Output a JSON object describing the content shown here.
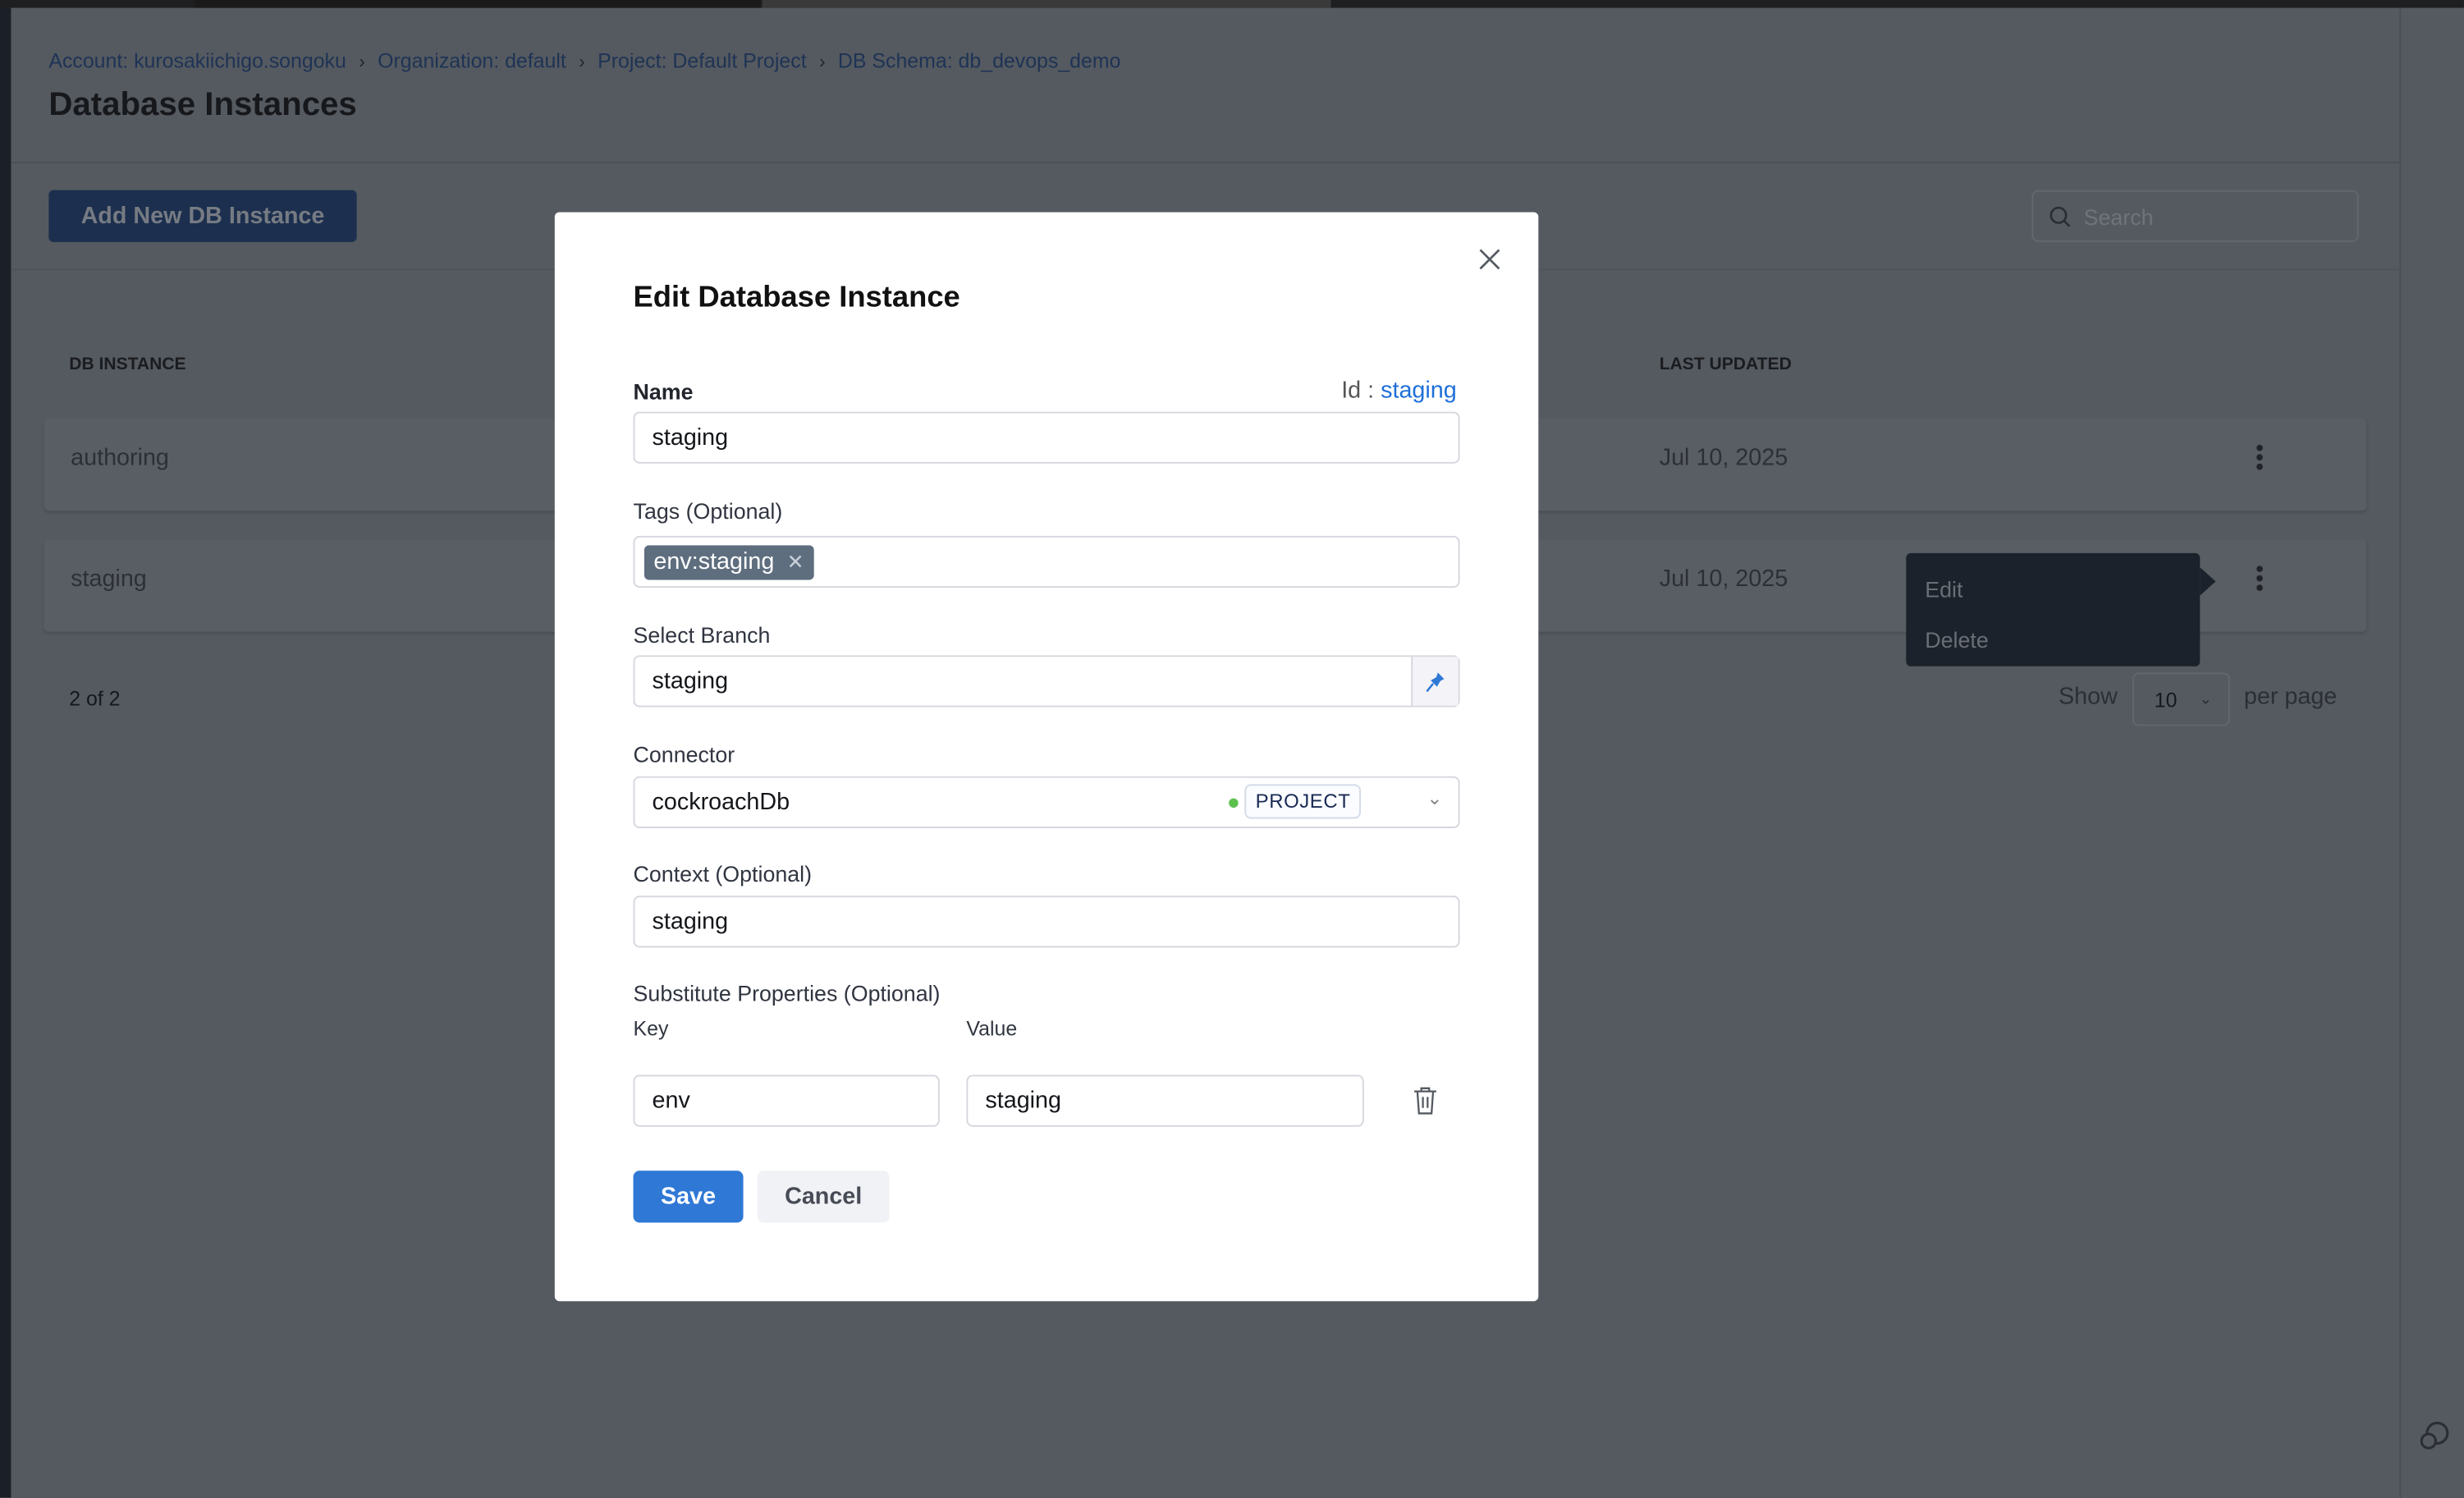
{
  "breadcrumbs": [
    "Account: kurosakiichigo.songoku",
    "Organization: default",
    "Project: Default Project",
    "DB Schema: db_devops_demo"
  ],
  "page_title": "Database Instances",
  "toolbar": {
    "add_label": "Add New DB Instance",
    "search_placeholder": "Search"
  },
  "table": {
    "columns": [
      "DB INSTANCE",
      "LAST UPDATED"
    ],
    "rows": [
      {
        "name": "authoring",
        "updated": "Jul 10, 2025"
      },
      {
        "name": "staging",
        "updated": "Jul 10, 2025"
      }
    ]
  },
  "row_menu": {
    "items": [
      "Edit",
      "Delete"
    ]
  },
  "pagination": {
    "count": "2 of 2",
    "show": "Show",
    "page_size": "10",
    "per_page": "per page"
  },
  "modal": {
    "title": "Edit Database Instance",
    "name_label": "Name",
    "id_label": "Id :",
    "id_value": "staging",
    "name_value": "staging",
    "tags_label": "Tags (Optional)",
    "tags": [
      "env:staging"
    ],
    "branch_label": "Select Branch",
    "branch_value": "staging",
    "connector_label": "Connector",
    "connector_value": "cockroachDb",
    "connector_scope": "PROJECT",
    "connector_status_color": "#5cc04f",
    "context_label": "Context (Optional)",
    "context_value": "staging",
    "subst_label": "Substitute Properties (Optional)",
    "key_label": "Key",
    "value_label": "Value",
    "properties": [
      {
        "key": "env",
        "value": "staging"
      }
    ],
    "save_label": "Save",
    "cancel_label": "Cancel"
  },
  "colors": {
    "accent": "#2f78d6",
    "link": "#1e6fd9"
  }
}
